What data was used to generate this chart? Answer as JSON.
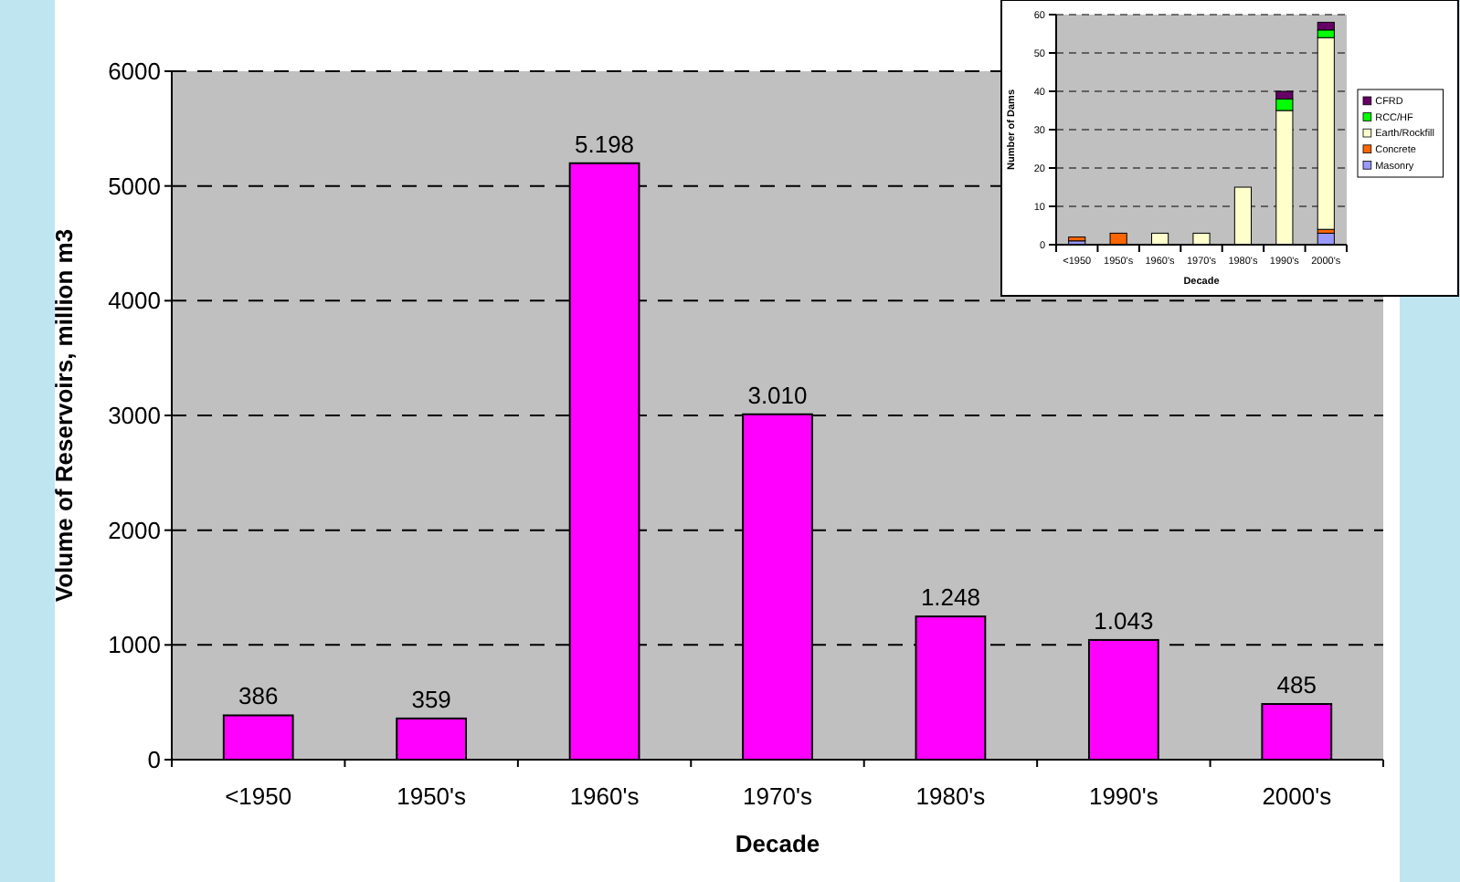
{
  "chart_data": [
    {
      "type": "bar",
      "xlabel": "Decade",
      "ylabel": "Volume of Reservoirs, million m3",
      "categories": [
        "<1950",
        "1950's",
        "1960's",
        "1970's",
        "1980's",
        "1990's",
        "2000's"
      ],
      "values": [
        386,
        359,
        5198,
        3010,
        1248,
        1043,
        485
      ],
      "value_labels": [
        "386",
        "359",
        "5.198",
        "3.010",
        "1.248",
        "1.043",
        "485"
      ],
      "color": "#ff00ff",
      "ylim": [
        0,
        6000
      ],
      "yticks": [
        0,
        1000,
        2000,
        3000,
        4000,
        5000,
        6000
      ],
      "grid": "y",
      "legend": false
    },
    {
      "type": "bar",
      "stacked": true,
      "xlabel": "Decade",
      "ylabel": "Number of Dams",
      "categories": [
        "<1950",
        "1950's",
        "1960's",
        "1970's",
        "1980's",
        "1990's",
        "2000's"
      ],
      "series": [
        {
          "name": "Masonry",
          "color": "#9999ff",
          "values": [
            1,
            0,
            0,
            0,
            0,
            0,
            3
          ]
        },
        {
          "name": "Concrete",
          "color": "#ff6600",
          "values": [
            1,
            3,
            0,
            0,
            0,
            0,
            1
          ]
        },
        {
          "name": "Earth/Rockfill",
          "color": "#ffffcc",
          "values": [
            0,
            0,
            3,
            3,
            15,
            35,
            50
          ]
        },
        {
          "name": "RCC/HF",
          "color": "#00ff00",
          "values": [
            0,
            0,
            0,
            0,
            0,
            3,
            2
          ]
        },
        {
          "name": "CFRD",
          "color": "#660066",
          "values": [
            0,
            0,
            0,
            0,
            0,
            2,
            2
          ]
        }
      ],
      "ylim": [
        0,
        60
      ],
      "yticks": [
        0,
        10,
        20,
        30,
        40,
        50,
        60
      ],
      "grid": "y",
      "legend": "right"
    }
  ]
}
